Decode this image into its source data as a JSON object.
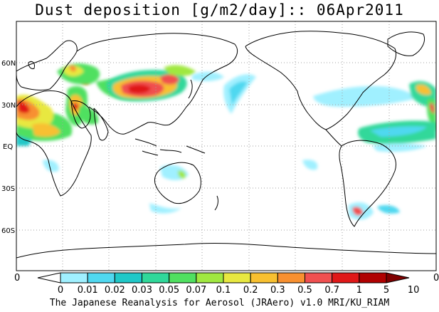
{
  "map": {
    "title": "Dust deposition [g/m2/day]:: 06Apr2011",
    "lat_labels": [
      "60N",
      "30N",
      "EQ",
      "30S",
      "60S"
    ],
    "lat_values": [
      60,
      30,
      0,
      -30,
      -60
    ],
    "lon_range": [
      -40,
      320
    ],
    "lat_range": [
      -90,
      90
    ],
    "grid": "dotted",
    "projection": "cylindrical",
    "colorbar": {
      "ticks": [
        "0",
        "0.01",
        "0.02",
        "0.03",
        "0.05",
        "0.07",
        "0.1",
        "0.2",
        "0.3",
        "0.5",
        "0.7",
        "1",
        "5",
        "10"
      ],
      "colors": [
        "#ffffff",
        "#a0f0ff",
        "#50d8f0",
        "#20c8c8",
        "#30d89a",
        "#50e060",
        "#a0e840",
        "#e8e840",
        "#f8c030",
        "#f89030",
        "#f05050",
        "#e01818",
        "#b00000",
        "#800000"
      ],
      "left_end_label": "0",
      "right_end_label": "0"
    },
    "footer": "The Japanese Reanalysis for Aerosol (JRAero) v1.0 MRI/KU_RIAM",
    "colors": {
      "coast": "#000000",
      "grid": "#a0a0a0"
    }
  }
}
